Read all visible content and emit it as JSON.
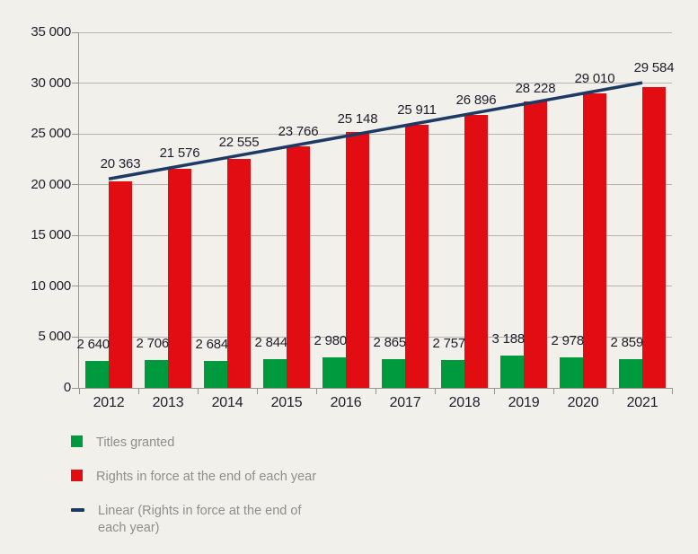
{
  "chart_data": {
    "type": "bar",
    "title": "",
    "xlabel": "",
    "ylabel": "",
    "categories": [
      "2012",
      "2013",
      "2014",
      "2015",
      "2016",
      "2017",
      "2018",
      "2019",
      "2020",
      "2021"
    ],
    "series": [
      {
        "name": "Titles granted",
        "color": "#009a3e",
        "values": [
          2640,
          2706,
          2684,
          2844,
          2980,
          2865,
          2757,
          3188,
          2978,
          2859
        ]
      },
      {
        "name": "Rights in force at the end of each year",
        "color": "#e20d13",
        "values": [
          20363,
          21576,
          22555,
          23766,
          25148,
          25911,
          26896,
          28228,
          29010,
          29584
        ]
      }
    ],
    "trendline": {
      "name": "Linear (Rights in force at the end of each year)",
      "type": "linear",
      "on_series": "Rights in force at the end of each year",
      "color": "#1c3a64"
    },
    "ylim": [
      0,
      35000
    ],
    "ytick_step": 5000,
    "ytick_labels": [
      "0",
      "5 000",
      "10 000",
      "15 000",
      "20 000",
      "25 000",
      "30 000",
      "35 000"
    ],
    "grid": true,
    "data_labels": true,
    "number_format": "space-thousands",
    "legend_position": "bottom-left"
  },
  "legend": {
    "items": [
      {
        "label": "Titles granted",
        "marker": "square",
        "color": "#009a3e"
      },
      {
        "label": "Rights in force at the end of each year",
        "marker": "square",
        "color": "#e20d13"
      },
      {
        "label": "Linear (Rights in force at the end of each year)",
        "label_lines": {
          "line1": "Linear (Rights in force at the end of",
          "line2": "each year)"
        },
        "marker": "line",
        "color": "#1c3a64"
      }
    ]
  },
  "colors": {
    "background": "#f2f0eb",
    "gridline": "#b7b4ae",
    "axis": "#98958f",
    "value_text": "#1e1e2b",
    "legend_text": "#8e8e8e"
  }
}
